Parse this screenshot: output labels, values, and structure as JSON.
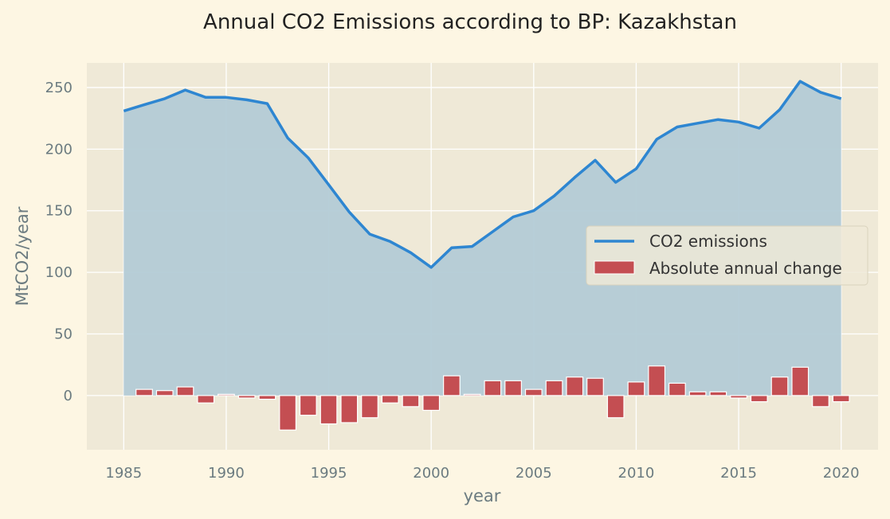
{
  "chart_data": {
    "type": "area+bar",
    "title": "Annual CO2 Emissions according to BP: Kazakhstan",
    "xlabel": "year",
    "ylabel": "MtCO2/year",
    "xlim": [
      1983.2,
      2021.8
    ],
    "ylim": [
      -44,
      270
    ],
    "xticks": [
      1985,
      1990,
      1995,
      2000,
      2005,
      2010,
      2015,
      2020
    ],
    "yticks": [
      0,
      50,
      100,
      150,
      200,
      250
    ],
    "grid": true,
    "legend_position": "center-right",
    "x": [
      1985,
      1986,
      1987,
      1988,
      1989,
      1990,
      1991,
      1992,
      1993,
      1994,
      1995,
      1996,
      1997,
      1998,
      1999,
      2000,
      2001,
      2002,
      2003,
      2004,
      2005,
      2006,
      2007,
      2008,
      2009,
      2010,
      2011,
      2012,
      2013,
      2014,
      2015,
      2016,
      2017,
      2018,
      2019,
      2020
    ],
    "series": [
      {
        "name": "CO2 emissions",
        "kind": "line-area",
        "color": "#2e86d1",
        "fill": "#b3cbd6",
        "values": [
          231,
          236,
          241,
          248,
          242,
          242,
          240,
          237,
          209,
          193,
          171,
          149,
          131,
          125,
          116,
          104,
          120,
          121,
          133,
          145,
          150,
          162,
          177,
          191,
          173,
          184,
          208,
          218,
          221,
          224,
          222,
          217,
          232,
          255,
          246,
          241
        ]
      },
      {
        "name": "Absolute annual change",
        "kind": "bar",
        "color": "#c44e52",
        "values": [
          null,
          5,
          4,
          7,
          -6,
          1,
          -2,
          -3,
          -28,
          -16,
          -23,
          -22,
          -18,
          -6,
          -9,
          -12,
          16,
          1,
          12,
          12,
          5,
          12,
          15,
          14,
          -18,
          11,
          24,
          10,
          3,
          3,
          -2,
          -5,
          15,
          23,
          -9,
          -5
        ]
      }
    ]
  }
}
